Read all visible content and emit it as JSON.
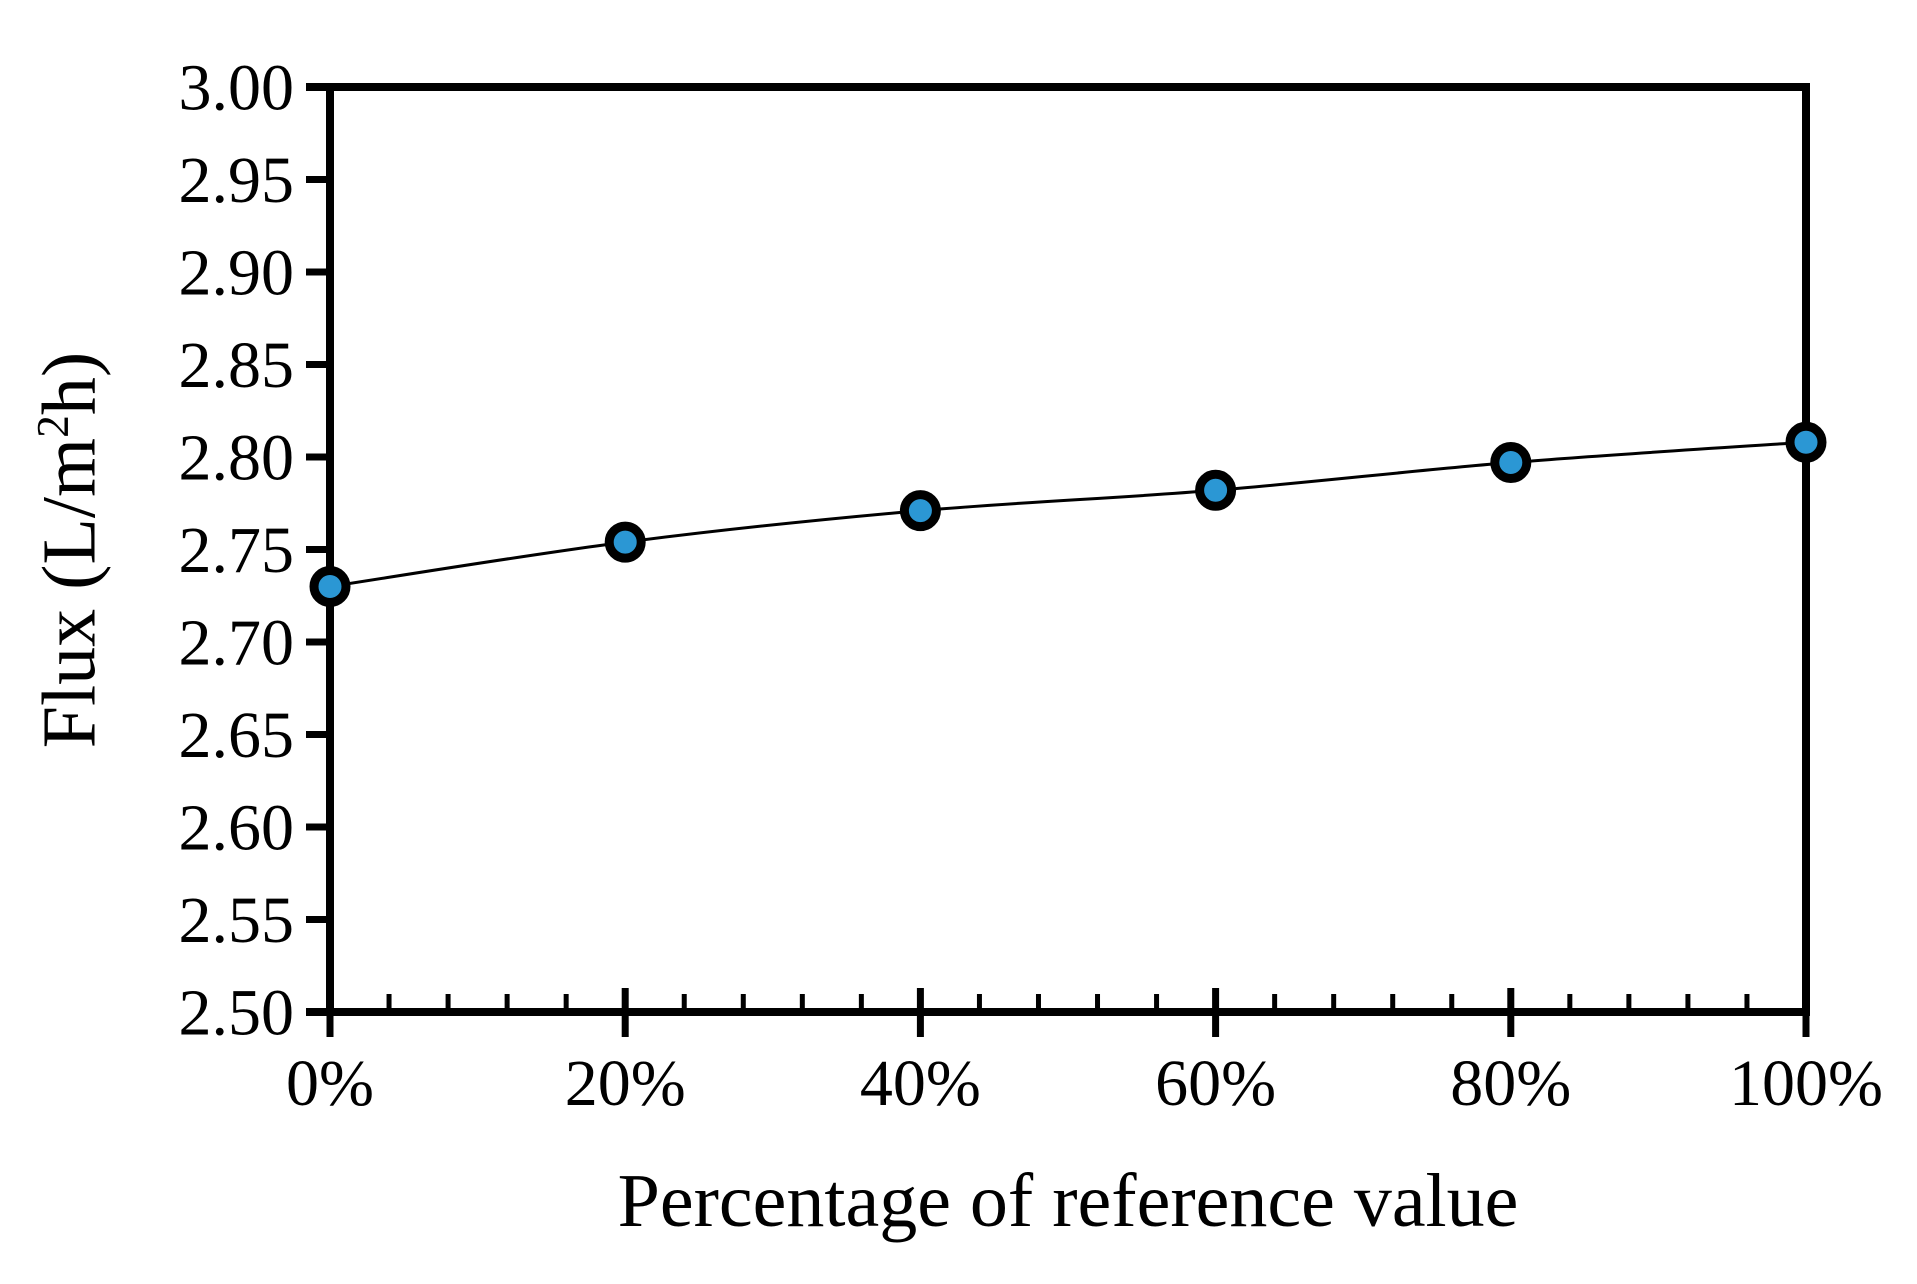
{
  "figure": {
    "background": "#ffffff"
  },
  "chart_data": {
    "type": "line",
    "title": "",
    "xlabel": "Percentage of reference value",
    "ylabel": "Flux (L/m²h)",
    "ylabel_parts": {
      "pre": "Flux (L/m",
      "sup": "2",
      "post": "h)"
    },
    "x": [
      0,
      20,
      40,
      60,
      80,
      100
    ],
    "x_tick_labels": [
      "0%",
      "20%",
      "40%",
      "60%",
      "80%",
      "100%"
    ],
    "series": [
      {
        "name": "Flux",
        "values": [
          2.73,
          2.754,
          2.771,
          2.782,
          2.797,
          2.808
        ]
      }
    ],
    "ylim": [
      2.5,
      3.0
    ],
    "y_tick_step": 0.05,
    "y_tick_labels": [
      "3.00",
      "2.95",
      "2.90",
      "2.85",
      "2.80",
      "2.75",
      "2.70",
      "2.65",
      "2.60",
      "2.55",
      "2.50"
    ],
    "x_minor_divisions_per_major": 5,
    "grid": "off",
    "legend": "none",
    "smooth_line": true,
    "line_color": "#000000",
    "marker_fill": "#2b97d4",
    "marker_stroke": "#000000",
    "axis_color": "#000000"
  }
}
